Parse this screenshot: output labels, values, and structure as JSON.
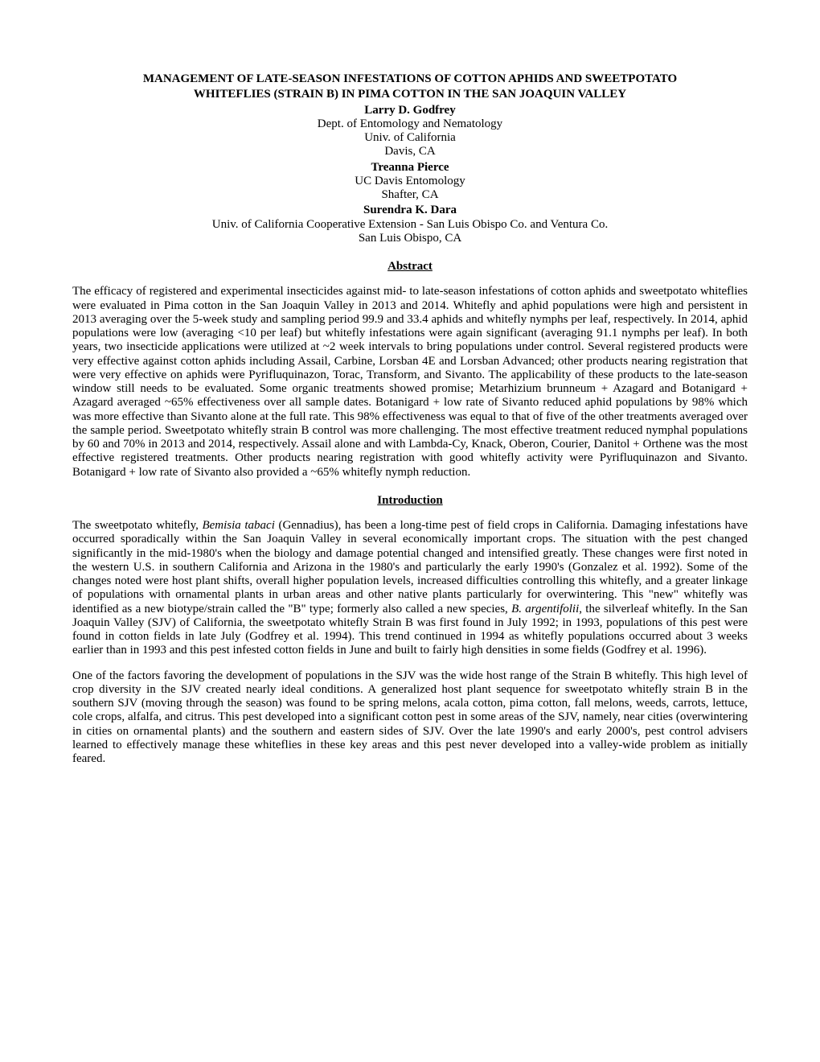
{
  "title_line1": "MANAGEMENT OF LATE-SEASON INFESTATIONS OF COTTON APHIDS AND SWEETPOTATO",
  "title_line2": "WHITEFLIES (STRAIN B) IN PIMA COTTON IN THE SAN JOAQUIN VALLEY",
  "authors": [
    {
      "name": "Larry D. Godfrey",
      "affils": [
        "Dept. of Entomology and Nematology",
        "Univ. of California",
        "Davis, CA"
      ]
    },
    {
      "name": "Treanna Pierce",
      "affils": [
        "UC Davis Entomology",
        "Shafter, CA"
      ]
    },
    {
      "name": "Surendra K. Dara",
      "affils": [
        "Univ. of California Cooperative Extension - San Luis Obispo Co. and Ventura Co.",
        "San Luis Obispo, CA"
      ]
    }
  ],
  "abstract_heading": "Abstract",
  "abstract_text": "The efficacy of registered and experimental insecticides against mid- to late-season infestations of cotton aphids and sweetpotato whiteflies were evaluated in Pima cotton in the San Joaquin Valley in 2013 and 2014. Whitefly and aphid populations were high and persistent in 2013 averaging over the 5-week study and sampling period 99.9 and 33.4 aphids and whitefly nymphs per leaf, respectively. In 2014, aphid populations were low (averaging <10 per leaf) but whitefly infestations were again significant (averaging 91.1 nymphs per leaf). In both years, two insecticide applications were utilized at ~2 week intervals to bring populations under control. Several registered products were very effective against cotton aphids including Assail, Carbine, Lorsban 4E and Lorsban Advanced; other products nearing registration that were very effective on aphids were Pyrifluquinazon, Torac, Transform, and Sivanto. The applicability of these products to the late-season window still needs to be evaluated. Some organic treatments showed promise; Metarhizium brunneum + Azagard and Botanigard + Azagard averaged ~65% effectiveness over all sample dates. Botanigard + low rate of Sivanto reduced aphid populations by 98% which was more effective than Sivanto alone at the full rate. This 98% effectiveness was equal to that of five of the other treatments averaged over the sample period. Sweetpotato whitefly strain B control was more challenging. The most effective treatment reduced nymphal populations by 60 and 70% in 2013 and 2014, respectively. Assail alone and with Lambda-Cy, Knack, Oberon, Courier, Danitol + Orthene was the most effective registered treatments. Other products nearing registration with good whitefly activity were Pyrifluquinazon and Sivanto. Botanigard + low rate of Sivanto also provided a ~65% whitefly nymph reduction.",
  "intro_heading": "Introduction",
  "intro_p1_pre": "The sweetpotato whitefly, ",
  "intro_p1_sp1": "Bemisia tabaci",
  "intro_p1_mid": " (Gennadius), has been a long-time pest of field crops in California. Damaging infestations have occurred sporadically within the San Joaquin Valley in several economically important crops. The situation with the pest changed significantly in the mid-1980's when the biology and damage potential changed and intensified greatly. These changes were first noted in the western U.S. in southern California and Arizona in the 1980's and particularly the early 1990's (Gonzalez et al. 1992). Some of the changes noted were host plant shifts, overall higher population levels, increased difficulties controlling this whitefly, and a greater linkage of populations with ornamental plants in urban areas and other native plants particularly for overwintering. This \"new\" whitefly was identified as a new biotype/strain called the \"B\" type; formerly also called a new species, ",
  "intro_p1_sp2": "B. argentifolii",
  "intro_p1_post": ", the silverleaf whitefly. In the San Joaquin Valley (SJV) of California, the sweetpotato whitefly Strain B was first found in July 1992; in 1993, populations of this pest were found in cotton fields in late July (Godfrey et al. 1994). This trend continued in 1994 as whitefly populations occurred about 3 weeks earlier than in 1993 and this pest infested cotton fields in June and built to fairly high densities in some fields (Godfrey et al. 1996).",
  "intro_p2": "One of the factors favoring the development of populations in the SJV was the wide host range of the Strain B whitefly. This high level of crop diversity in the SJV created nearly ideal conditions. A generalized host plant sequence for sweetpotato whitefly strain B in the southern SJV (moving through the season) was found to be spring melons, acala cotton, pima cotton, fall melons, weeds, carrots, lettuce, cole crops, alfalfa, and citrus. This pest developed into a significant cotton pest in some areas of the SJV, namely, near cities (overwintering in cities on ornamental plants) and the southern and eastern sides of SJV. Over the late 1990's and early 2000's, pest control advisers learned to effectively manage these whiteflies in these key areas and this pest never developed into a valley-wide problem as initially feared."
}
